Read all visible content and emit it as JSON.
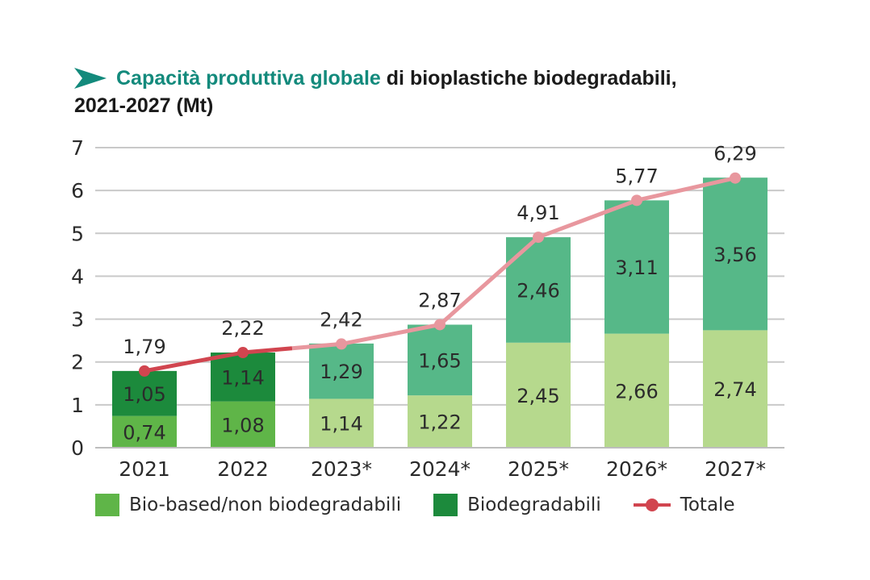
{
  "title": {
    "accent": "Capacità produttiva globale",
    "rest": " di bioplastiche biodegradabili,",
    "line2": "2021-2027 (Mt)"
  },
  "chart_data": {
    "type": "bar",
    "stacked": true,
    "categories": [
      "2021",
      "2022",
      "2023*",
      "2024*",
      "2025*",
      "2026*",
      "2027*"
    ],
    "series": [
      {
        "name": "Bio-based/non biodegradabili",
        "values": [
          0.74,
          1.08,
          1.14,
          1.22,
          2.45,
          2.66,
          2.74
        ],
        "labels": [
          "0,74",
          "1,08",
          "1,14",
          "1,22",
          "2,45",
          "2,66",
          "2,74"
        ]
      },
      {
        "name": "Biodegradabili",
        "values": [
          1.05,
          1.14,
          1.29,
          1.65,
          2.46,
          3.11,
          3.56
        ],
        "labels": [
          "1,05",
          "1,14",
          "1,29",
          "1,65",
          "2,46",
          "3,11",
          "3,56"
        ]
      }
    ],
    "line": {
      "name": "Totale",
      "values": [
        1.79,
        2.22,
        2.42,
        2.87,
        4.91,
        5.77,
        6.29
      ],
      "labels": [
        "1,79",
        "2,22",
        "2,42",
        "2,87",
        "4,91",
        "5,77",
        "6,29"
      ]
    },
    "ylim": [
      0,
      7
    ],
    "yticks": [
      "0",
      "1",
      "2",
      "3",
      "4",
      "5",
      "6",
      "7"
    ],
    "grid": true,
    "legend_position": "bottom",
    "colors": {
      "actual_lower": "#5fb548",
      "actual_upper": "#1c8a3c",
      "forecast_lower": "#b6d98d",
      "forecast_upper": "#56b888",
      "line_actual": "#d1454f",
      "line_forecast": "#e8979e",
      "accent": "#138a7c"
    }
  },
  "legend": {
    "items": [
      {
        "label": "Bio-based/non biodegradabili",
        "color": "#5fb548"
      },
      {
        "label": "Biodegradabili",
        "color": "#1c8a3c"
      },
      {
        "label": "Totale",
        "color": "#d1454f"
      }
    ]
  }
}
